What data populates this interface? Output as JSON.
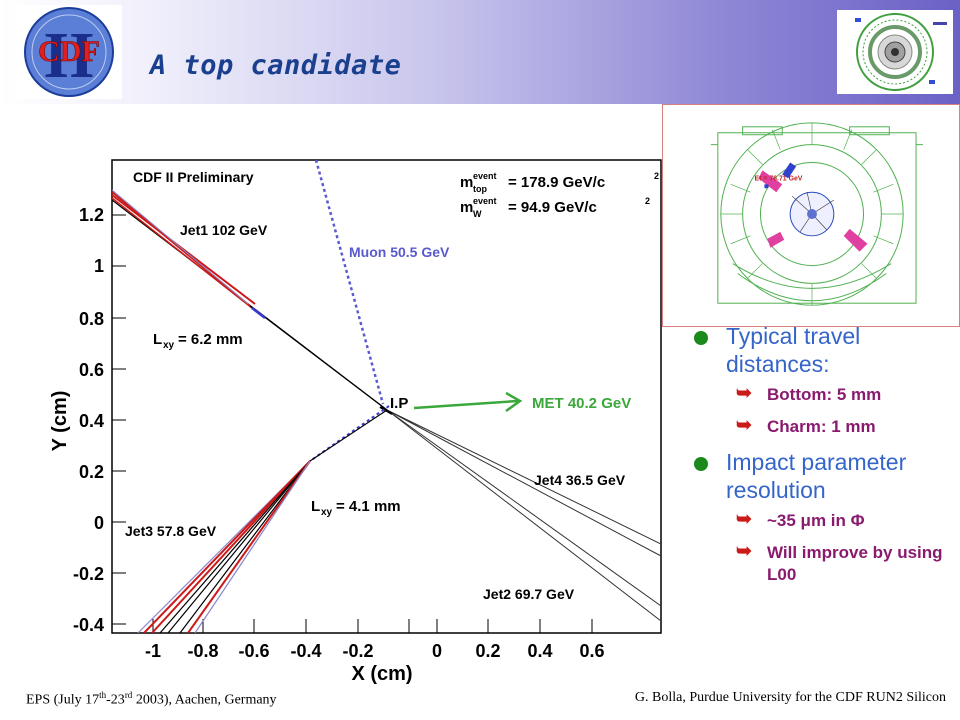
{
  "title": "A top candidate",
  "logo": {
    "text": "CDF",
    "numeral": "II"
  },
  "plot": {
    "preliminary": "CDF II Preliminary",
    "m_top": "= 178.9 GeV/c",
    "m_w": "= 94.9 GeV/c",
    "event_sup": "event",
    "top_sub": "top",
    "w_sub": "W",
    "sq": "2",
    "jet1": "Jet1 102 GeV",
    "jet2": "Jet2 69.7 GeV",
    "jet3": "Jet3 57.8 GeV",
    "jet4": "Jet4 36.5 GeV",
    "muon": "Muon 50.5 GeV",
    "met": "MET 40.2 GeV",
    "ip": "I.P",
    "lxy1": "= 6.2 mm",
    "lxy2": "= 4.1 mm",
    "lxy_L": "L",
    "lxy_sub": "xy",
    "xlabel": "X (cm)",
    "ylabel": "Y (cm)",
    "x_ticks": [
      "-1",
      "-0.8",
      "-0.6",
      "-0.4",
      "-0.2",
      "0",
      "0.2",
      "0.4",
      "0.6"
    ],
    "y_ticks": [
      "1.2",
      "1",
      "0.8",
      "0.6",
      "0.4",
      "0.2",
      "0",
      "-0.2",
      "-0.4"
    ]
  },
  "event_display": {
    "label": "Et = 76.71 GeV"
  },
  "bullets": [
    {
      "text": "Typical travel distances:",
      "subs": [
        "Bottom: 5 mm",
        "Charm: 1 mm"
      ]
    },
    {
      "text": "Impact parameter resolution",
      "subs": [
        "~35 μm in Φ",
        "Will improve by using L00"
      ]
    }
  ],
  "footer": {
    "left_a": "EPS (July 17",
    "left_sup1": "th",
    "left_b": "-23",
    "left_sup2": "rd",
    "left_c": " 2003), Aachen, Germany",
    "right": "G. Bolla, Purdue University for the CDF RUN2 Silicon"
  },
  "colors": {
    "title": "#1a3f8e",
    "bullet": "#3565c9",
    "sub_bullet": "#8a1a6e",
    "track_red": "#cc1a1a",
    "track_blue": "#3a3ad0"
  }
}
